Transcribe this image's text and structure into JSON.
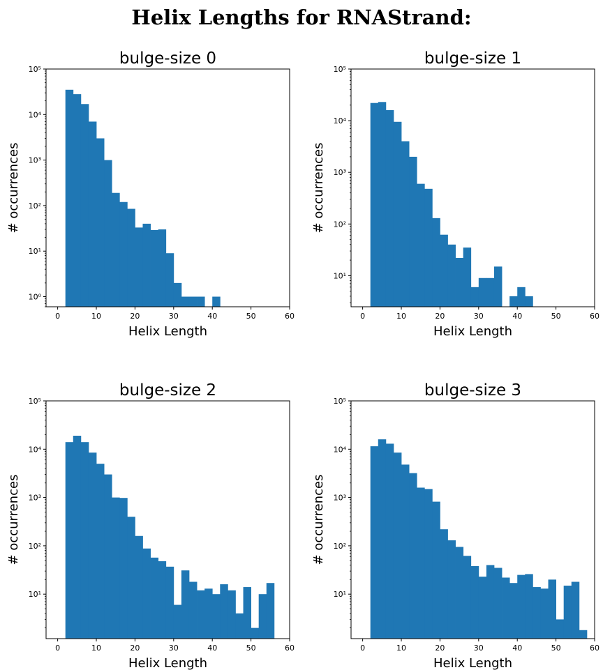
{
  "figure_title": "Helix Lengths for RNAStrand:",
  "bar_color": "#1f77b4",
  "chart_data": [
    {
      "type": "bar",
      "title": "bulge-size 0",
      "xlabel": "Helix Length",
      "ylabel": "# occurrences",
      "xlim": [
        -3,
        60
      ],
      "xticks": [
        0,
        10,
        20,
        30,
        40,
        50,
        60
      ],
      "yscale": "log",
      "ylim": [
        0.6,
        100000
      ],
      "yticks": [
        1,
        10,
        100,
        1000,
        10000,
        100000
      ],
      "ytick_labels": [
        "10⁰",
        "10¹",
        "10²",
        "10³",
        "10⁴",
        "10⁵"
      ],
      "bin_width": 2,
      "bins": [
        {
          "start": 2,
          "count": 35000
        },
        {
          "start": 4,
          "count": 28000
        },
        {
          "start": 6,
          "count": 17000
        },
        {
          "start": 8,
          "count": 7000
        },
        {
          "start": 10,
          "count": 3000
        },
        {
          "start": 12,
          "count": 1000
        },
        {
          "start": 14,
          "count": 190
        },
        {
          "start": 16,
          "count": 120
        },
        {
          "start": 18,
          "count": 85
        },
        {
          "start": 20,
          "count": 33
        },
        {
          "start": 22,
          "count": 40
        },
        {
          "start": 24,
          "count": 29
        },
        {
          "start": 26,
          "count": 30
        },
        {
          "start": 28,
          "count": 9
        },
        {
          "start": 30,
          "count": 2
        },
        {
          "start": 32,
          "count": 1
        },
        {
          "start": 34,
          "count": 1
        },
        {
          "start": 36,
          "count": 1
        },
        {
          "start": 40,
          "count": 1
        }
      ],
      "grid": false
    },
    {
      "type": "bar",
      "title": "bulge-size 1",
      "xlabel": "Helix Length",
      "ylabel": "# occurrences",
      "xlim": [
        -3,
        60
      ],
      "xticks": [
        0,
        10,
        20,
        30,
        40,
        50,
        60
      ],
      "yscale": "log",
      "ylim": [
        2.5,
        100000
      ],
      "yticks": [
        10,
        100,
        1000,
        10000,
        100000
      ],
      "ytick_labels": [
        "10¹",
        "10²",
        "10³",
        "10⁴",
        "10⁵"
      ],
      "bin_width": 2,
      "bins": [
        {
          "start": 2,
          "count": 22000
        },
        {
          "start": 4,
          "count": 23000
        },
        {
          "start": 6,
          "count": 16000
        },
        {
          "start": 8,
          "count": 9500
        },
        {
          "start": 10,
          "count": 4000
        },
        {
          "start": 12,
          "count": 2000
        },
        {
          "start": 14,
          "count": 600
        },
        {
          "start": 16,
          "count": 480
        },
        {
          "start": 18,
          "count": 130
        },
        {
          "start": 20,
          "count": 62
        },
        {
          "start": 22,
          "count": 40
        },
        {
          "start": 24,
          "count": 22
        },
        {
          "start": 26,
          "count": 35
        },
        {
          "start": 28,
          "count": 6
        },
        {
          "start": 30,
          "count": 9
        },
        {
          "start": 32,
          "count": 9
        },
        {
          "start": 34,
          "count": 15
        },
        {
          "start": 38,
          "count": 4
        },
        {
          "start": 40,
          "count": 6
        },
        {
          "start": 42,
          "count": 4
        }
      ],
      "grid": false
    },
    {
      "type": "bar",
      "title": "bulge-size 2",
      "xlabel": "Helix Length",
      "ylabel": "# occurrences",
      "xlim": [
        -3,
        60
      ],
      "xticks": [
        0,
        10,
        20,
        30,
        40,
        50,
        60
      ],
      "yscale": "log",
      "ylim": [
        1.2,
        100000
      ],
      "yticks": [
        10,
        100,
        1000,
        10000,
        100000
      ],
      "ytick_labels": [
        "10¹",
        "10²",
        "10³",
        "10⁴",
        "10⁵"
      ],
      "bin_width": 2,
      "bins": [
        {
          "start": 2,
          "count": 14000
        },
        {
          "start": 4,
          "count": 19000
        },
        {
          "start": 6,
          "count": 14000
        },
        {
          "start": 8,
          "count": 8500
        },
        {
          "start": 10,
          "count": 5000
        },
        {
          "start": 12,
          "count": 3000
        },
        {
          "start": 14,
          "count": 1000
        },
        {
          "start": 16,
          "count": 980
        },
        {
          "start": 18,
          "count": 400
        },
        {
          "start": 20,
          "count": 160
        },
        {
          "start": 22,
          "count": 88
        },
        {
          "start": 24,
          "count": 57
        },
        {
          "start": 26,
          "count": 48
        },
        {
          "start": 28,
          "count": 37
        },
        {
          "start": 30,
          "count": 6
        },
        {
          "start": 32,
          "count": 31
        },
        {
          "start": 34,
          "count": 18
        },
        {
          "start": 36,
          "count": 12
        },
        {
          "start": 38,
          "count": 13
        },
        {
          "start": 40,
          "count": 10
        },
        {
          "start": 42,
          "count": 16
        },
        {
          "start": 44,
          "count": 12
        },
        {
          "start": 46,
          "count": 4
        },
        {
          "start": 48,
          "count": 14
        },
        {
          "start": 50,
          "count": 2
        },
        {
          "start": 52,
          "count": 10
        },
        {
          "start": 54,
          "count": 17
        }
      ],
      "grid": false
    },
    {
      "type": "bar",
      "title": "bulge-size 3",
      "xlabel": "Helix Length",
      "ylabel": "# occurrences",
      "xlim": [
        -3,
        60
      ],
      "xticks": [
        0,
        10,
        20,
        30,
        40,
        50,
        60
      ],
      "yscale": "log",
      "ylim": [
        1.2,
        100000
      ],
      "yticks": [
        10,
        100,
        1000,
        10000,
        100000
      ],
      "ytick_labels": [
        "10¹",
        "10²",
        "10³",
        "10⁴",
        "10⁵"
      ],
      "bin_width": 2,
      "bins": [
        {
          "start": 2,
          "count": 11500
        },
        {
          "start": 4,
          "count": 16000
        },
        {
          "start": 6,
          "count": 13000
        },
        {
          "start": 8,
          "count": 8500
        },
        {
          "start": 10,
          "count": 4800
        },
        {
          "start": 12,
          "count": 3200
        },
        {
          "start": 14,
          "count": 1600
        },
        {
          "start": 16,
          "count": 1500
        },
        {
          "start": 18,
          "count": 820
        },
        {
          "start": 20,
          "count": 220
        },
        {
          "start": 22,
          "count": 130
        },
        {
          "start": 24,
          "count": 95
        },
        {
          "start": 26,
          "count": 62
        },
        {
          "start": 28,
          "count": 38
        },
        {
          "start": 30,
          "count": 23
        },
        {
          "start": 32,
          "count": 40
        },
        {
          "start": 34,
          "count": 35
        },
        {
          "start": 36,
          "count": 22
        },
        {
          "start": 38,
          "count": 17
        },
        {
          "start": 40,
          "count": 25
        },
        {
          "start": 42,
          "count": 26
        },
        {
          "start": 44,
          "count": 14
        },
        {
          "start": 46,
          "count": 13
        },
        {
          "start": 48,
          "count": 20
        },
        {
          "start": 50,
          "count": 3
        },
        {
          "start": 52,
          "count": 15
        },
        {
          "start": 54,
          "count": 18
        },
        {
          "start": 56,
          "count": 1.8
        }
      ],
      "grid": false
    }
  ]
}
